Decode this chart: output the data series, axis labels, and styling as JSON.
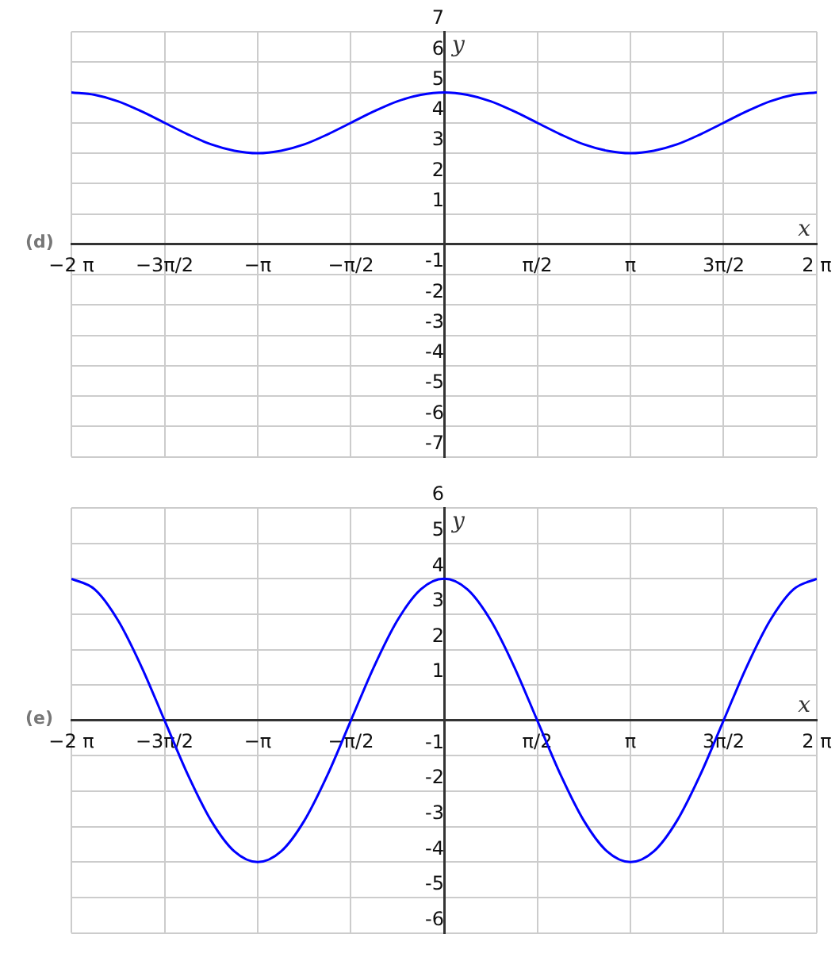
{
  "chart_data": [
    {
      "type": "line",
      "xlabel": "x",
      "ylabel": "y",
      "annotations": [
        "(d)"
      ],
      "x": [
        -6.283,
        -5.89,
        -5.498,
        -5.105,
        -4.712,
        -4.32,
        -3.927,
        -3.534,
        -3.142,
        -2.749,
        -2.356,
        -1.963,
        -1.571,
        -1.178,
        -0.785,
        -0.393,
        0,
        0.393,
        0.785,
        1.178,
        1.571,
        1.963,
        2.356,
        2.749,
        3.142,
        3.534,
        3.927,
        4.32,
        4.712,
        5.105,
        5.498,
        5.89,
        6.283
      ],
      "series": [
        {
          "color": "#0000ff",
          "values": [
            5,
            4.92,
            4.71,
            4.38,
            4,
            3.62,
            3.29,
            3.08,
            3,
            3.08,
            3.29,
            3.62,
            4,
            4.38,
            4.71,
            4.92,
            5,
            4.92,
            4.71,
            4.38,
            4,
            3.62,
            3.29,
            3.08,
            3,
            3.08,
            3.29,
            3.62,
            4,
            4.38,
            4.71,
            4.92,
            5
          ]
        }
      ],
      "xlim": [
        -6.283,
        6.283
      ],
      "ylim": [
        -7,
        7
      ],
      "xticks": [
        {
          "value": -6.283,
          "label": "−2 π"
        },
        {
          "value": -4.712,
          "label": "−3π/2"
        },
        {
          "value": -3.142,
          "label": "−π"
        },
        {
          "value": -1.571,
          "label": "−π/2"
        },
        {
          "value": 1.571,
          "label": "π/2"
        },
        {
          "value": 3.142,
          "label": "π"
        },
        {
          "value": 4.712,
          "label": "3π/2"
        },
        {
          "value": 6.283,
          "label": "2 π"
        }
      ],
      "yticks": [
        -7,
        -6,
        -5,
        -4,
        -3,
        -2,
        -1,
        1,
        2,
        3,
        4,
        5,
        6,
        7
      ],
      "grid": true,
      "legend": false,
      "marker": "none",
      "line_style": "solid"
    },
    {
      "type": "line",
      "xlabel": "x",
      "ylabel": "y",
      "annotations": [
        "(e)"
      ],
      "x": [
        -6.283,
        -5.89,
        -5.498,
        -5.105,
        -4.712,
        -4.32,
        -3.927,
        -3.534,
        -3.142,
        -2.749,
        -2.356,
        -1.963,
        -1.571,
        -1.178,
        -0.785,
        -0.393,
        0,
        0.393,
        0.785,
        1.178,
        1.571,
        1.963,
        2.356,
        2.749,
        3.142,
        3.534,
        3.927,
        4.32,
        4.712,
        5.105,
        5.498,
        5.89,
        6.283
      ],
      "series": [
        {
          "color": "#0000ff",
          "values": [
            4,
            3.7,
            2.83,
            1.53,
            0,
            -1.53,
            -2.83,
            -3.7,
            -4,
            -3.7,
            -2.83,
            -1.53,
            0,
            1.53,
            2.83,
            3.7,
            4,
            3.7,
            2.83,
            1.53,
            0,
            -1.53,
            -2.83,
            -3.7,
            -4,
            -3.7,
            -2.83,
            -1.53,
            0,
            1.53,
            2.83,
            3.7,
            4
          ]
        }
      ],
      "xlim": [
        -6.283,
        6.283
      ],
      "ylim": [
        -6,
        6
      ],
      "xticks": [
        {
          "value": -6.283,
          "label": "−2 π"
        },
        {
          "value": -4.712,
          "label": "−3π/2"
        },
        {
          "value": -3.142,
          "label": "−π"
        },
        {
          "value": -1.571,
          "label": "−π/2"
        },
        {
          "value": 1.571,
          "label": "π/2"
        },
        {
          "value": 3.142,
          "label": "π"
        },
        {
          "value": 4.712,
          "label": "3π/2"
        },
        {
          "value": 6.283,
          "label": "2 π"
        }
      ],
      "yticks": [
        -6,
        -5,
        -4,
        -3,
        -2,
        -1,
        1,
        2,
        3,
        4,
        5,
        6
      ],
      "grid": true,
      "legend": false,
      "marker": "none",
      "line_style": "solid"
    }
  ]
}
